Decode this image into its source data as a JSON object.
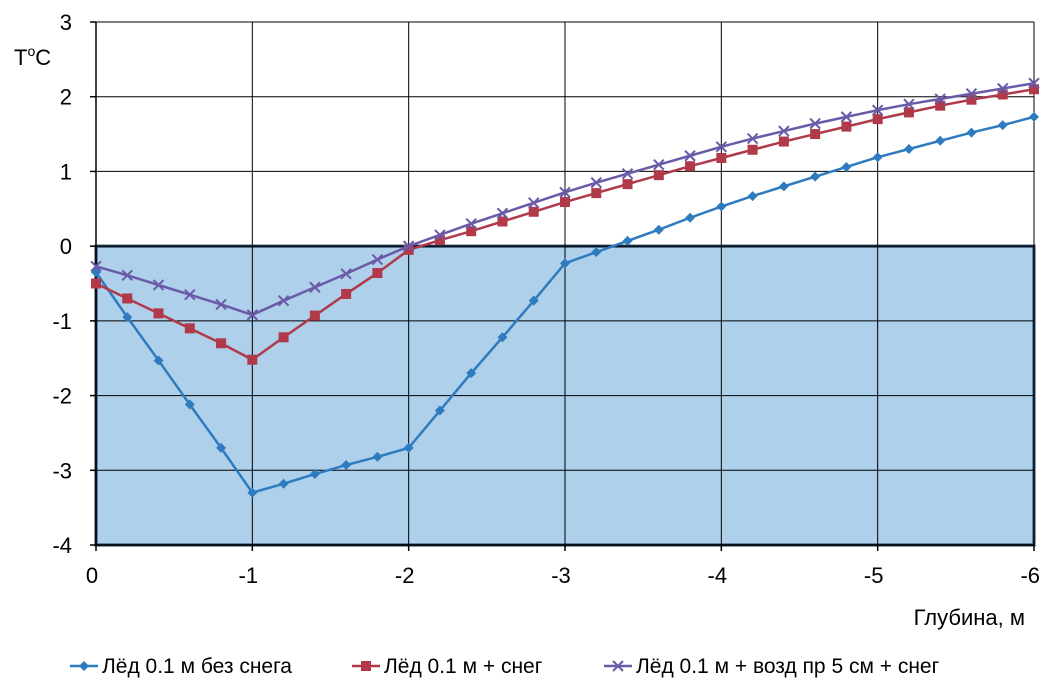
{
  "chart_data": {
    "type": "line",
    "xlabel": "Глубина, м",
    "ylabel": "T⁰C",
    "ylabel_main": "T",
    "ylabel_sup": "o",
    "ylabel_tail": "C",
    "xlim": [
      0,
      -6
    ],
    "ylim": [
      -4,
      3
    ],
    "grid": true,
    "legend_position": "bottom",
    "x_ticks": [
      0,
      -1,
      -2,
      -3,
      -4,
      -5,
      -6
    ],
    "x_tick_labels": [
      "0",
      "-1",
      "-2",
      "-3",
      "-4",
      "-5",
      "-6"
    ],
    "y_ticks": [
      3,
      2,
      1,
      0,
      -1,
      -2,
      -3,
      -4
    ],
    "y_tick_labels": [
      "3",
      "2",
      "1",
      "0",
      "-1",
      "-2",
      "-3",
      "-4"
    ],
    "shaded_region": {
      "x": [
        0,
        -6
      ],
      "y": [
        -4,
        0
      ],
      "color": "#aed0ea"
    },
    "x": [
      0,
      -0.2,
      -0.4,
      -0.6,
      -0.8,
      -1.0,
      -1.2,
      -1.4,
      -1.6,
      -1.8,
      -2.0,
      -2.2,
      -2.4,
      -2.6,
      -2.8,
      -3.0,
      -3.2,
      -3.4,
      -3.6,
      -3.8,
      -4.0,
      -4.2,
      -4.4,
      -4.6,
      -4.8,
      -5.0,
      -5.2,
      -5.4,
      -5.6,
      -5.8,
      -6.0
    ],
    "series": [
      {
        "name": "Лёд 0.1 м без снега",
        "color": "#2e7bbf",
        "marker": "diamond",
        "values": [
          -0.35,
          -0.95,
          -1.53,
          -2.12,
          -2.7,
          -3.3,
          -3.18,
          -3.05,
          -2.93,
          -2.82,
          -2.7,
          -2.2,
          -1.7,
          -1.22,
          -0.73,
          -0.23,
          -0.08,
          0.07,
          0.22,
          0.38,
          0.53,
          0.67,
          0.8,
          0.93,
          1.06,
          1.19,
          1.3,
          1.41,
          1.52,
          1.62,
          1.73
        ]
      },
      {
        "name": "Лёд 0.1 м + снег",
        "color": "#b0394a",
        "marker": "square",
        "values": [
          -0.5,
          -0.7,
          -0.9,
          -1.1,
          -1.3,
          -1.52,
          -1.22,
          -0.93,
          -0.64,
          -0.36,
          -0.05,
          0.08,
          0.2,
          0.33,
          0.46,
          0.59,
          0.71,
          0.83,
          0.95,
          1.07,
          1.18,
          1.29,
          1.4,
          1.5,
          1.6,
          1.7,
          1.79,
          1.88,
          1.96,
          2.03,
          2.1
        ]
      },
      {
        "name": "Лёд 0.1 м + возд пр 5 см + снег",
        "color": "#6a5aa8",
        "marker": "x",
        "values": [
          -0.27,
          -0.39,
          -0.52,
          -0.65,
          -0.78,
          -0.92,
          -0.73,
          -0.55,
          -0.37,
          -0.18,
          0.0,
          0.15,
          0.3,
          0.44,
          0.58,
          0.72,
          0.85,
          0.97,
          1.09,
          1.21,
          1.33,
          1.44,
          1.54,
          1.64,
          1.73,
          1.82,
          1.9,
          1.97,
          2.04,
          2.11,
          2.18
        ]
      }
    ]
  }
}
